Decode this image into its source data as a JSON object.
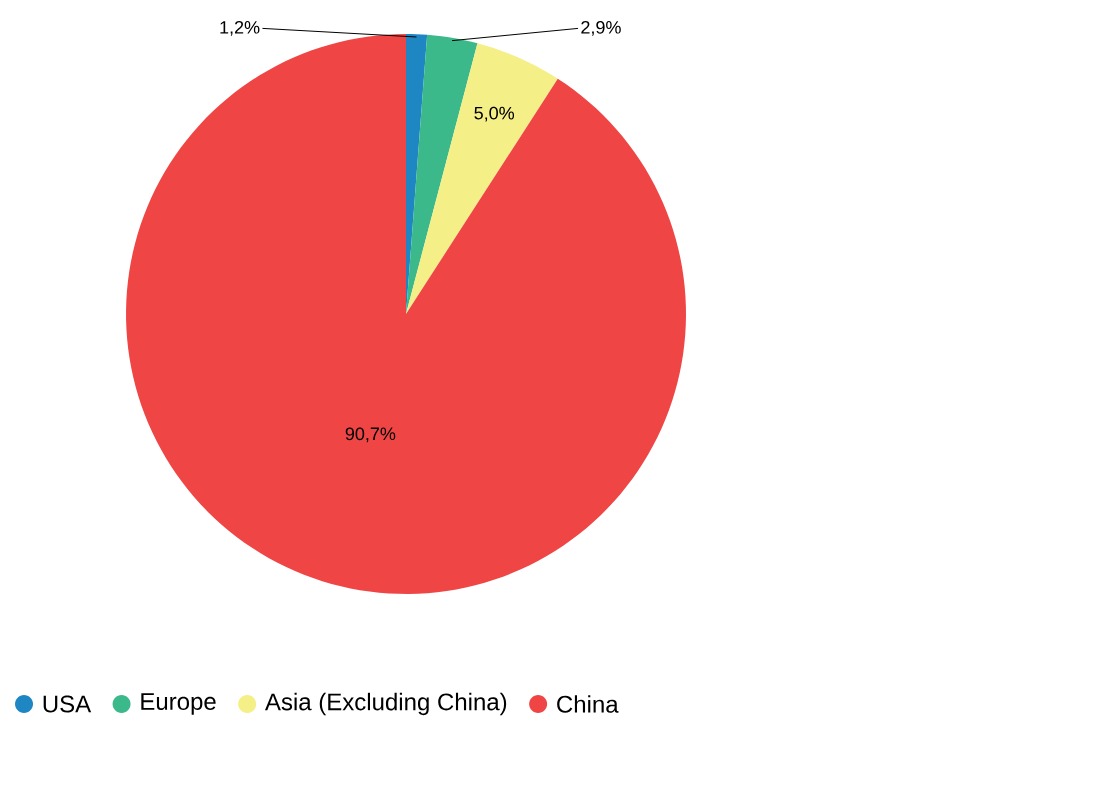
{
  "chart_data": {
    "type": "pie",
    "categories": [
      "USA",
      "Europe",
      "Asia (Excluding China)",
      "China"
    ],
    "values": [
      1.2,
      2.9,
      5.0,
      90.7
    ],
    "colors": [
      "#1f86c4",
      "#3cb98a",
      "#f4ef86",
      "#f04545"
    ],
    "value_labels": [
      "1,2%",
      "2,9%",
      "5,0%",
      "90,7%"
    ],
    "legend": "bottom"
  }
}
